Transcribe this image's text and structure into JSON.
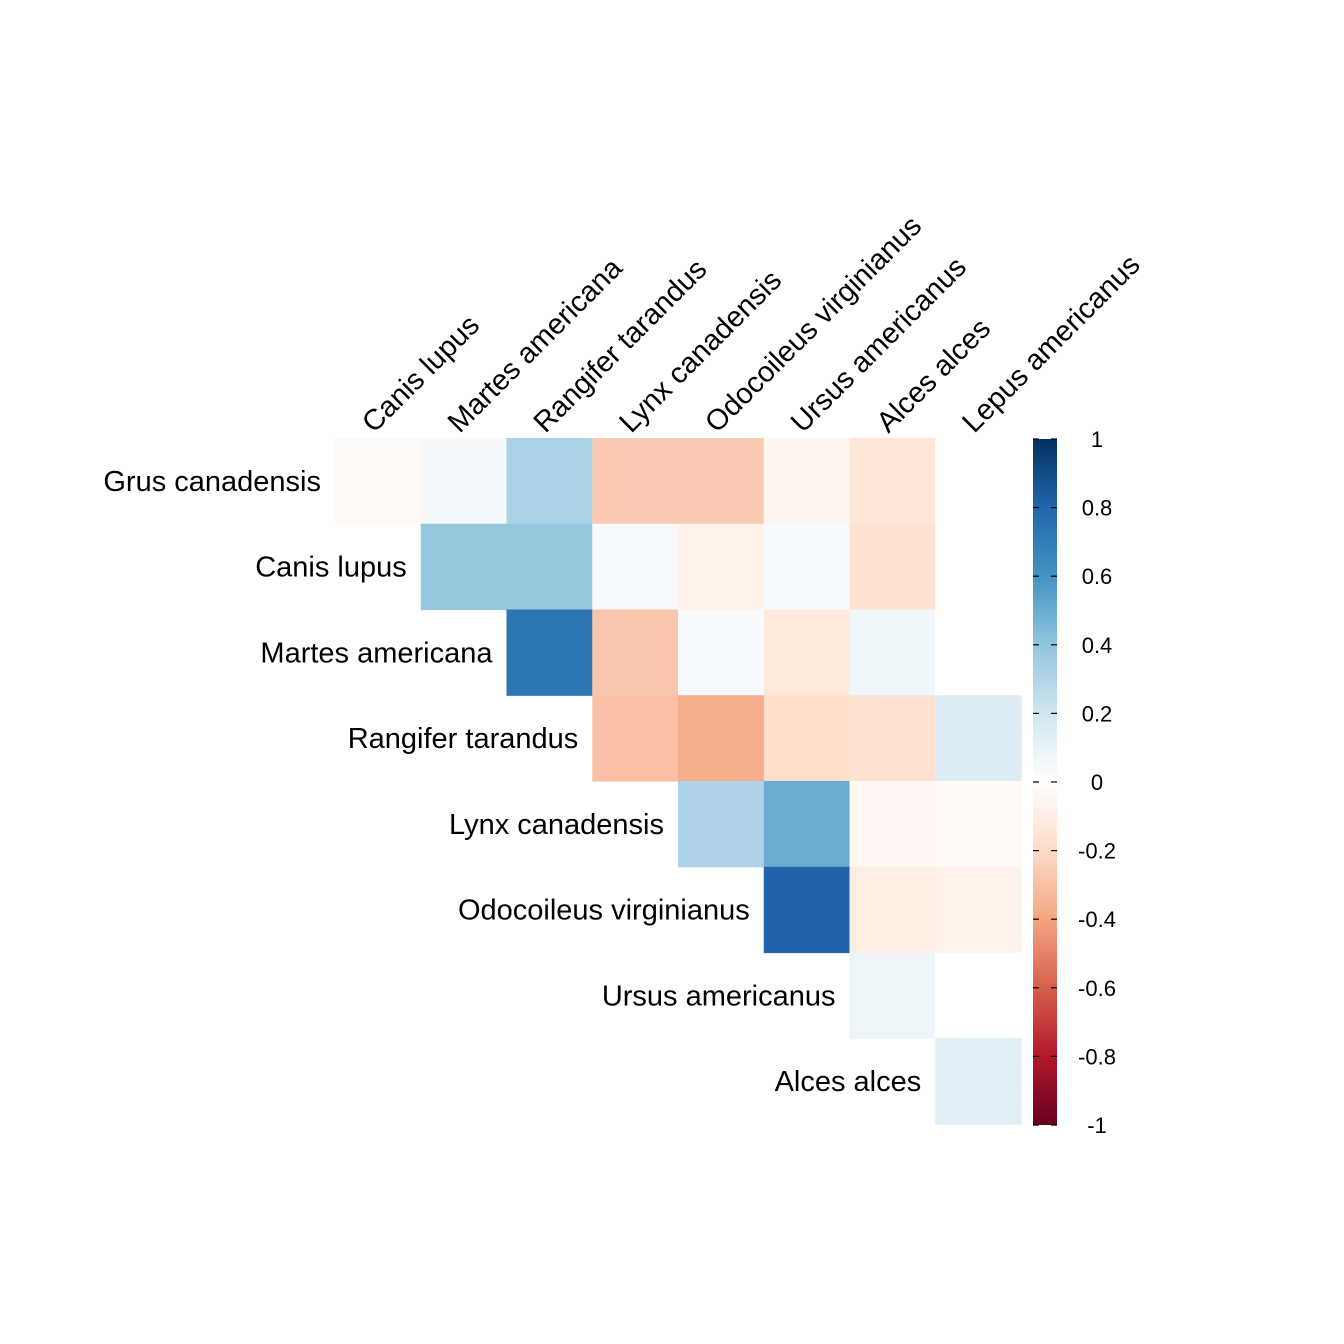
{
  "chart_data": {
    "type": "heatmap",
    "subtype": "correlation-upper-triangle",
    "rows": [
      "Grus canadensis",
      "Canis lupus",
      "Martes americana",
      "Rangifer tarandus",
      "Lynx canadensis",
      "Odocoileus virginianus",
      "Ursus americanus",
      "Alces alces"
    ],
    "columns": [
      "Canis lupus",
      "Martes americana",
      "Rangifer tarandus",
      "Lynx canadensis",
      "Odocoileus virginianus",
      "Ursus americanus",
      "Alces alces",
      "Lepus americanus"
    ],
    "values": [
      [
        -0.03,
        0.05,
        0.32,
        -0.26,
        -0.26,
        -0.05,
        -0.14,
        0.0
      ],
      [
        null,
        0.39,
        0.39,
        0.04,
        -0.07,
        0.03,
        -0.16,
        0.0
      ],
      [
        null,
        null,
        0.73,
        -0.28,
        0.03,
        -0.13,
        0.07,
        0.0
      ],
      [
        null,
        null,
        null,
        -0.3,
        -0.37,
        -0.18,
        -0.16,
        0.15
      ],
      [
        null,
        null,
        null,
        null,
        0.31,
        0.5,
        -0.04,
        -0.03
      ],
      [
        null,
        null,
        null,
        null,
        null,
        0.81,
        -0.1,
        -0.07
      ],
      [
        null,
        null,
        null,
        null,
        null,
        null,
        0.08,
        0.0
      ],
      [
        null,
        null,
        null,
        null,
        null,
        null,
        null,
        0.13
      ]
    ],
    "colorbar": {
      "range": [
        -1,
        1
      ],
      "ticks": [
        "1",
        "0.8",
        "0.6",
        "0.4",
        "0.2",
        "0",
        "-0.2",
        "-0.4",
        "-0.6",
        "-0.8",
        "-1"
      ],
      "colors": [
        "#67001F",
        "#B2182B",
        "#D6604D",
        "#F4A582",
        "#FDDBC7",
        "#FFFFFF",
        "#D1E5F0",
        "#92C5DE",
        "#4393C3",
        "#2166AC",
        "#053061"
      ]
    }
  }
}
